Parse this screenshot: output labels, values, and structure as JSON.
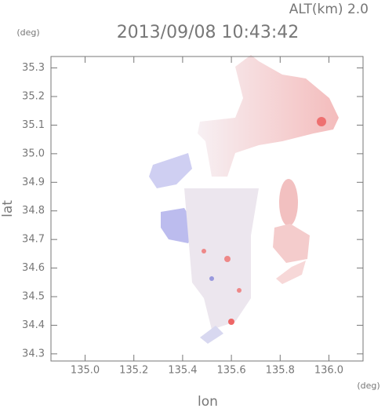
{
  "chart_data": {
    "type": "map",
    "title": "2013/09/08 10:43:42",
    "subtitle": "ALT(km) 2.0",
    "xlabel": "lon",
    "ylabel": "lat",
    "xunit": "(deg)",
    "yunit": "(deg)",
    "xlim": [
      134.86,
      136.14
    ],
    "xticks": [
      {
        "value": 135,
        "label": "135.0"
      },
      135.2,
      135.4,
      135.6,
      135.8,
      {
        "value": 136,
        "label": "136.0"
      }
    ],
    "ylim": [
      34.275,
      35.34
    ],
    "yticks": [
      34.3,
      34.4,
      34.5,
      34.6,
      34.7,
      34.8,
      34.9,
      {
        "value": 35,
        "label": "35.0"
      },
      35.1,
      35.2,
      35.3
    ]
  }
}
